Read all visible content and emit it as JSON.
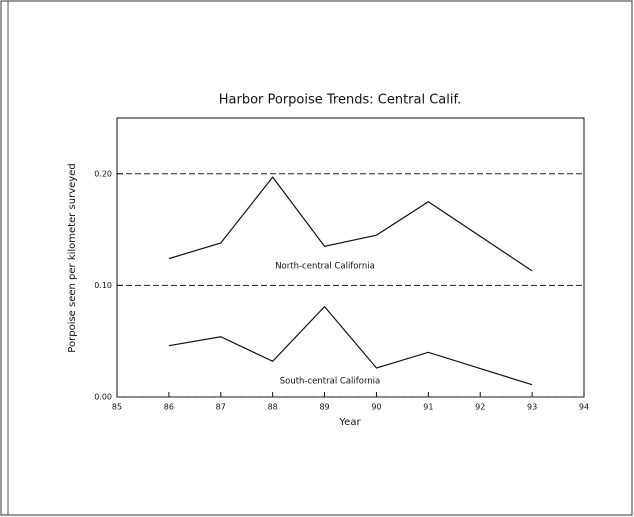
{
  "chart_data": {
    "type": "line",
    "title": "Harbor Porpoise Trends: Central Calif.",
    "x_label": "Year",
    "y_label": "Porpoise seen per kilometer surveyed",
    "xlim": [
      85,
      94
    ],
    "xticks": [
      85,
      86,
      87,
      88,
      89,
      90,
      91,
      92,
      93,
      94
    ],
    "ylim": [
      0,
      0.25
    ],
    "yticks": [
      {
        "value": 0,
        "label": "0.00"
      },
      {
        "value": 0.1,
        "label": "0.10"
      },
      {
        "value": 0.2,
        "label": "0.20"
      }
    ],
    "grid": true,
    "series": [
      {
        "name": "North-central California",
        "color": "#111111",
        "x": [
          86,
          87,
          88,
          89,
          90,
          91,
          93
        ],
        "values": [
          0.124,
          0.138,
          0.197,
          0.135,
          0.145,
          0.175,
          0.113
        ]
      },
      {
        "name": "South-central California",
        "color": "#111111",
        "x": [
          86,
          87,
          88,
          89,
          90,
          91,
          93
        ],
        "values": [
          0.046,
          0.054,
          0.032,
          0.081,
          0.026,
          0.04,
          0.011
        ]
      }
    ]
  }
}
